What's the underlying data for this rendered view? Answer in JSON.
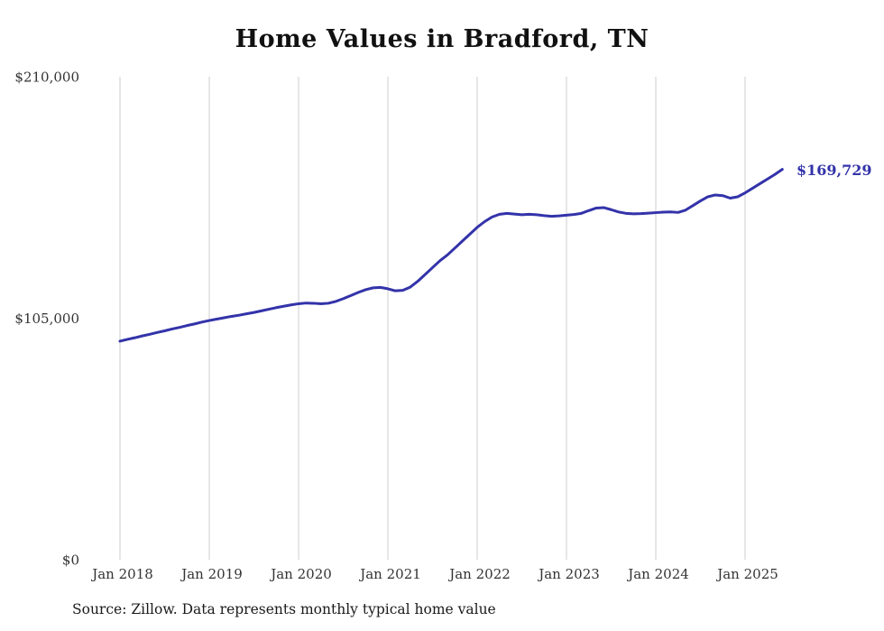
{
  "page": {
    "title": "Home Values in Bradford, TN",
    "source_note": "Source: Zillow. Data represents monthly typical home value"
  },
  "chart_data": {
    "type": "line",
    "title": "Home Values in Bradford, TN",
    "x_start": "2018-01",
    "x_end": "2025-06",
    "x_tick_labels": [
      "Jan 2018",
      "Jan 2019",
      "Jan 2020",
      "Jan 2021",
      "Jan 2022",
      "Jan 2023",
      "Jan 2024",
      "Jan 2025"
    ],
    "y_ticks": [
      0,
      105000,
      210000
    ],
    "y_tick_labels": [
      "$0",
      "$105,000",
      "$210,000"
    ],
    "ylim": [
      0,
      210000
    ],
    "grid": "vertical",
    "legend": "none",
    "line_color": "#3333aa",
    "grid_color": "#cccccc",
    "tick_color": "#333333",
    "end_label": "$169,729",
    "end_value": 169729,
    "series": [
      {
        "name": "Typical home value (monthly)",
        "color": "#3333aa",
        "values": [
          95000,
          95800,
          96500,
          97300,
          98000,
          98800,
          99500,
          100300,
          101000,
          101800,
          102500,
          103300,
          104000,
          104600,
          105200,
          105800,
          106300,
          106900,
          107500,
          108200,
          108900,
          109600,
          110200,
          110800,
          111300,
          111600,
          111500,
          111300,
          111500,
          112300,
          113500,
          114800,
          116200,
          117400,
          118200,
          118400,
          117800,
          116900,
          117100,
          118500,
          121000,
          124000,
          127000,
          130000,
          132500,
          135500,
          138500,
          141500,
          144500,
          147000,
          149000,
          150200,
          150600,
          150300,
          150000,
          150200,
          150000,
          149600,
          149300,
          149500,
          149800,
          150100,
          150600,
          151800,
          152900,
          153100,
          152200,
          151200,
          150600,
          150400,
          150500,
          150700,
          150900,
          151100,
          151200,
          151000,
          152000,
          154000,
          156000,
          157800,
          158600,
          158300,
          157200,
          157800,
          159500,
          161500,
          163500,
          165500,
          167500,
          169729
        ]
      }
    ]
  }
}
